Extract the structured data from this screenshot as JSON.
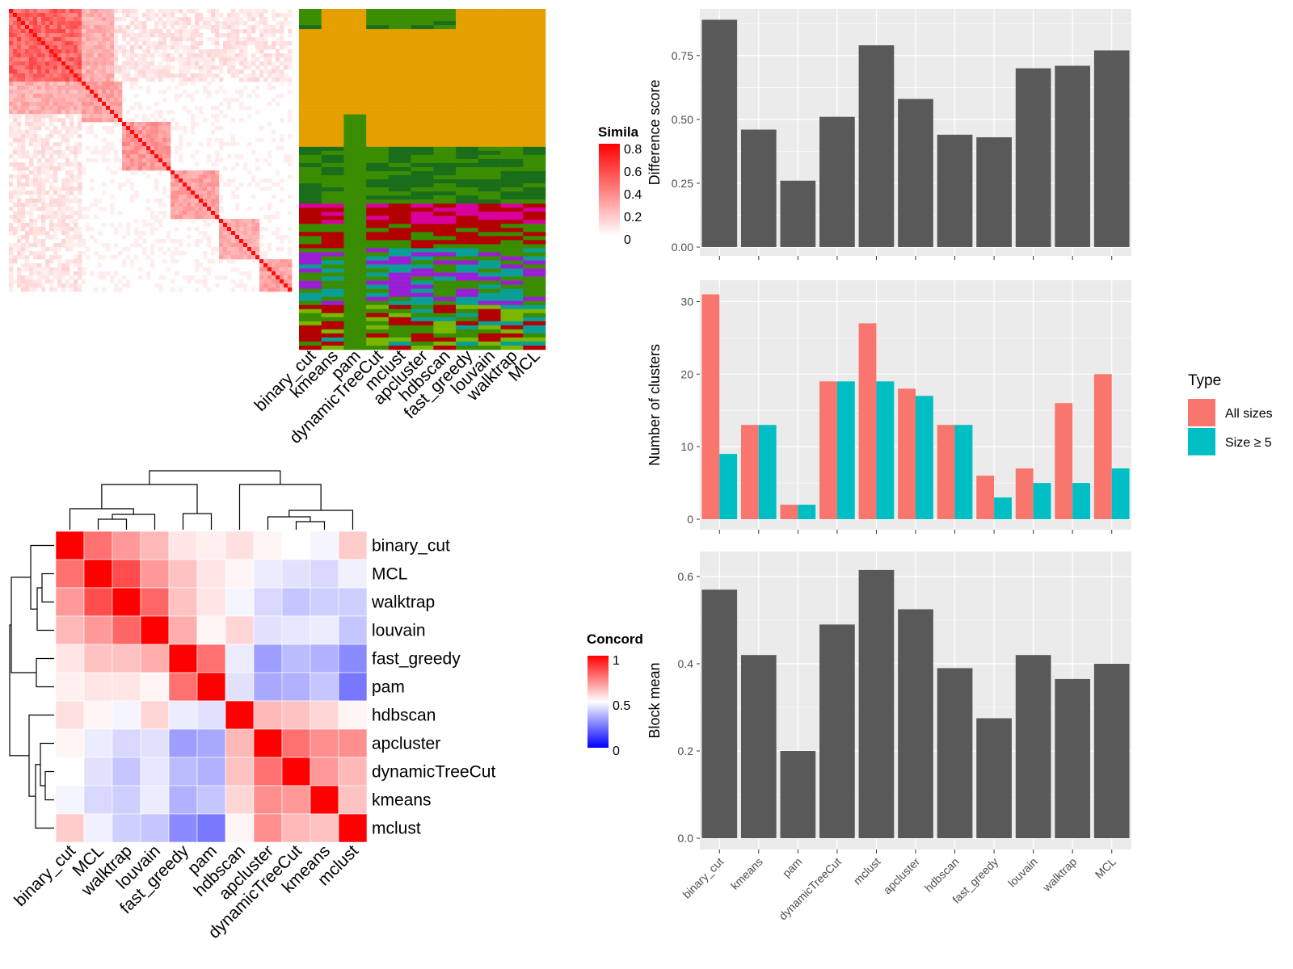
{
  "methods": [
    "binary_cut",
    "kmeans",
    "pam",
    "dynamicTreeCut",
    "mclust",
    "apcluster",
    "hdbscan",
    "fast_greedy",
    "louvain",
    "walktrap",
    "MCL"
  ],
  "similarity_legend": {
    "title": "Simila",
    "ticks": [
      "0.8",
      "0.6",
      "0.4",
      "0.2",
      "0"
    ]
  },
  "concordance_legend": {
    "title": "Concord",
    "ticks": [
      "1",
      "0.5",
      "0"
    ]
  },
  "heatmap_rows": [
    "binary_cut",
    "MCL",
    "walktrap",
    "louvain",
    "fast_greedy",
    "pam",
    "hdbscan",
    "apcluster",
    "dynamicTreeCut",
    "kmeans",
    "mclust"
  ],
  "concordance_matrix": [
    [
      1.0,
      0.78,
      0.7,
      0.64,
      0.55,
      0.53,
      0.56,
      0.52,
      0.5,
      0.48,
      0.6
    ],
    [
      0.78,
      1.0,
      0.85,
      0.7,
      0.62,
      0.55,
      0.52,
      0.46,
      0.44,
      0.42,
      0.47
    ],
    [
      0.7,
      0.85,
      1.0,
      0.8,
      0.62,
      0.55,
      0.48,
      0.42,
      0.38,
      0.4,
      0.4
    ],
    [
      0.64,
      0.7,
      0.8,
      1.0,
      0.66,
      0.52,
      0.58,
      0.44,
      0.45,
      0.46,
      0.38
    ],
    [
      0.55,
      0.62,
      0.62,
      0.66,
      1.0,
      0.78,
      0.46,
      0.3,
      0.36,
      0.34,
      0.26
    ],
    [
      0.53,
      0.55,
      0.55,
      0.52,
      0.78,
      1.0,
      0.44,
      0.32,
      0.34,
      0.38,
      0.22
    ],
    [
      0.56,
      0.52,
      0.48,
      0.58,
      0.46,
      0.44,
      1.0,
      0.64,
      0.62,
      0.58,
      0.52
    ],
    [
      0.52,
      0.46,
      0.42,
      0.44,
      0.3,
      0.32,
      0.64,
      1.0,
      0.78,
      0.72,
      0.72
    ],
    [
      0.5,
      0.44,
      0.38,
      0.45,
      0.36,
      0.34,
      0.62,
      0.78,
      1.0,
      0.7,
      0.64
    ],
    [
      0.48,
      0.42,
      0.4,
      0.46,
      0.34,
      0.38,
      0.58,
      0.72,
      0.7,
      1.0,
      0.62
    ],
    [
      0.6,
      0.47,
      0.4,
      0.38,
      0.26,
      0.22,
      0.52,
      0.72,
      0.64,
      0.62,
      1.0
    ]
  ],
  "chart_data": [
    {
      "type": "bar",
      "categories": [
        "binary_cut",
        "kmeans",
        "pam",
        "dynamicTreeCut",
        "mclust",
        "apcluster",
        "hdbscan",
        "fast_greedy",
        "louvain",
        "walktrap",
        "MCL"
      ],
      "values": [
        0.89,
        0.46,
        0.26,
        0.51,
        0.79,
        0.58,
        0.44,
        0.43,
        0.7,
        0.71,
        0.77
      ],
      "ylabel": "Difference score",
      "ylim": [
        0,
        0.92
      ],
      "yticks": [
        0,
        0.25,
        0.5,
        0.75
      ],
      "ytick_labels": [
        "0.00",
        "0.25",
        "0.50",
        "0.75"
      ]
    },
    {
      "type": "bar",
      "categories": [
        "binary_cut",
        "kmeans",
        "pam",
        "dynamicTreeCut",
        "mclust",
        "apcluster",
        "hdbscan",
        "fast_greedy",
        "louvain",
        "walktrap",
        "MCL"
      ],
      "series": [
        {
          "name": "All sizes",
          "values": [
            31,
            13,
            2,
            19,
            27,
            18,
            13,
            6,
            7,
            16,
            20
          ]
        },
        {
          "name": "Size ≥ 5",
          "values": [
            9,
            13,
            2,
            19,
            19,
            17,
            13,
            3,
            5,
            5,
            7
          ]
        }
      ],
      "ylabel": "Number of clusters",
      "ylim": [
        0,
        32.5
      ],
      "yticks": [
        0,
        10,
        20,
        30
      ],
      "ytick_labels": [
        "0",
        "10",
        "20",
        "30"
      ],
      "legend_title": "Type",
      "legend_position": "right"
    },
    {
      "type": "bar",
      "categories": [
        "binary_cut",
        "kmeans",
        "pam",
        "dynamicTreeCut",
        "mclust",
        "apcluster",
        "hdbscan",
        "fast_greedy",
        "louvain",
        "walktrap",
        "MCL"
      ],
      "values": [
        0.57,
        0.42,
        0.2,
        0.49,
        0.615,
        0.525,
        0.39,
        0.275,
        0.42,
        0.365,
        0.4
      ],
      "ylabel": "Block mean",
      "ylim": [
        0,
        0.65
      ],
      "yticks": [
        0,
        0.2,
        0.4,
        0.6
      ],
      "ytick_labels": [
        "0.0",
        "0.2",
        "0.4",
        "0.6"
      ]
    }
  ],
  "colors": {
    "bar": "#595959",
    "panel": "#ebebeb",
    "series_all": "#f8766d",
    "series_size5": "#00bfc4",
    "class_orange": "#e5a000",
    "class_green": "#3a8c00",
    "class_darkgreen": "#1a6e1a",
    "class_teal": "#0a9e96",
    "class_red": "#b30000",
    "class_magenta": "#d9009e",
    "class_violet": "#9a1fd4",
    "class_lime": "#7ab800"
  }
}
